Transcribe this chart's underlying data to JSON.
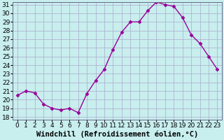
{
  "x": [
    0,
    1,
    2,
    3,
    4,
    5,
    6,
    7,
    8,
    9,
    10,
    11,
    12,
    13,
    14,
    15,
    16,
    17,
    18,
    19,
    20,
    21,
    22,
    23
  ],
  "y": [
    20.5,
    21.0,
    20.8,
    19.5,
    19.0,
    18.8,
    19.0,
    18.5,
    20.7,
    22.2,
    23.5,
    25.8,
    27.8,
    29.0,
    29.0,
    30.3,
    31.3,
    31.0,
    30.8,
    29.5,
    27.5,
    26.5,
    25.0,
    23.5
  ],
  "line_color": "#990099",
  "marker": "D",
  "markersize": 2.5,
  "linewidth": 1.0,
  "bg_color": "#c8eeee",
  "grid_color": "#aaaacc",
  "xlabel": "Windchill (Refroidissement éolien,°C)",
  "xlabel_fontsize": 7.5,
  "ytick_min": 18,
  "ytick_max": 31,
  "ytick_step": 1,
  "xtick_labels": [
    "0",
    "1",
    "2",
    "3",
    "4",
    "5",
    "6",
    "7",
    "8",
    "9",
    "10",
    "11",
    "12",
    "13",
    "14",
    "15",
    "16",
    "17",
    "18",
    "19",
    "20",
    "21",
    "22",
    "23"
  ],
  "tick_fontsize": 6.5,
  "figsize": [
    3.2,
    2.0
  ],
  "dpi": 100
}
